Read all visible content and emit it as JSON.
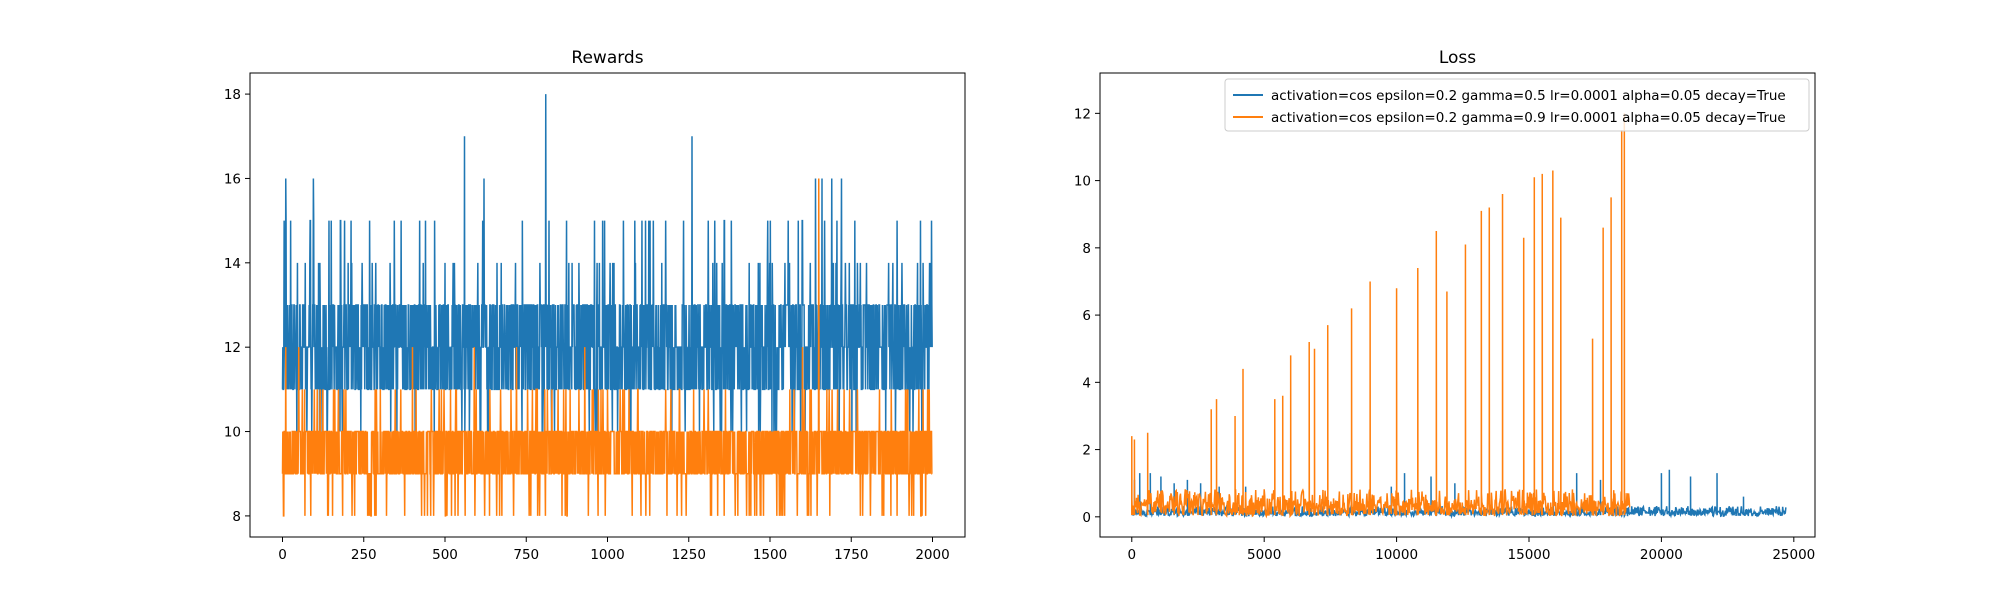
{
  "figure": {
    "background": "#ffffff"
  },
  "chart_data": [
    {
      "type": "line",
      "title": "Rewards",
      "xlabel": "",
      "ylabel": "",
      "xlim": [
        -100,
        2100
      ],
      "ylim": [
        7.5,
        18.5
      ],
      "xticks": [
        0,
        250,
        500,
        750,
        1000,
        1250,
        1500,
        1750,
        2000
      ],
      "xtick_labels": [
        "0",
        "250",
        "500",
        "750",
        "1000",
        "1250",
        "1500",
        "1750",
        "2000"
      ],
      "yticks": [
        8,
        10,
        12,
        14,
        16,
        18
      ],
      "ytick_labels": [
        "8",
        "10",
        "12",
        "14",
        "16",
        "18"
      ],
      "grid": false,
      "series": [
        {
          "color": "#1f77b4",
          "n_points": 2000,
          "typical_range": [
            11,
            13
          ],
          "occasional_range": [
            10,
            15
          ],
          "spikes": [
            {
              "x": 5,
              "y": 15
            },
            {
              "x": 10,
              "y": 16
            },
            {
              "x": 95,
              "y": 16
            },
            {
              "x": 560,
              "y": 17
            },
            {
              "x": 620,
              "y": 16
            },
            {
              "x": 810,
              "y": 18
            },
            {
              "x": 1260,
              "y": 17
            },
            {
              "x": 1640,
              "y": 16
            },
            {
              "x": 1660,
              "y": 16
            },
            {
              "x": 1690,
              "y": 16
            },
            {
              "x": 1720,
              "y": 16
            }
          ]
        },
        {
          "color": "#ff7f0e",
          "n_points": 2000,
          "typical_range": [
            9,
            10
          ],
          "occasional_range": [
            8,
            11
          ],
          "spikes": [
            {
              "x": 10,
              "y": 12
            },
            {
              "x": 50,
              "y": 12
            },
            {
              "x": 400,
              "y": 12
            },
            {
              "x": 590,
              "y": 12
            },
            {
              "x": 720,
              "y": 12
            },
            {
              "x": 930,
              "y": 12
            },
            {
              "x": 1600,
              "y": 12
            },
            {
              "x": 1650,
              "y": 16
            }
          ]
        }
      ]
    },
    {
      "type": "line",
      "title": "Loss",
      "xlabel": "",
      "ylabel": "",
      "xlim": [
        -1200,
        25800
      ],
      "ylim": [
        -0.6,
        13.2
      ],
      "xticks": [
        0,
        5000,
        10000,
        15000,
        20000,
        25000
      ],
      "xtick_labels": [
        "0",
        "5000",
        "10000",
        "15000",
        "20000",
        "25000"
      ],
      "yticks": [
        0,
        2,
        4,
        6,
        8,
        10,
        12
      ],
      "ytick_labels": [
        "0",
        "2",
        "4",
        "6",
        "8",
        "10",
        "12"
      ],
      "grid": false,
      "legend_position": "top-right",
      "series": [
        {
          "name": "activation=cos epsilon=0.2 gamma=0.5 lr=0.0001 alpha=0.05 decay=True",
          "color": "#1f77b4",
          "x_max": 24700,
          "baseline_max": 0.3,
          "spikes": [
            {
              "x": 100,
              "y": 1.1
            },
            {
              "x": 300,
              "y": 1.3
            },
            {
              "x": 700,
              "y": 1.3
            },
            {
              "x": 1100,
              "y": 1.2
            },
            {
              "x": 1600,
              "y": 1.0
            },
            {
              "x": 2100,
              "y": 1.1
            },
            {
              "x": 2600,
              "y": 1.0
            },
            {
              "x": 3300,
              "y": 0.9
            },
            {
              "x": 4300,
              "y": 0.9
            },
            {
              "x": 9800,
              "y": 0.9
            },
            {
              "x": 10300,
              "y": 1.3
            },
            {
              "x": 11300,
              "y": 1.2
            },
            {
              "x": 12200,
              "y": 1.0
            },
            {
              "x": 16800,
              "y": 1.3
            },
            {
              "x": 17700,
              "y": 1.1
            },
            {
              "x": 20000,
              "y": 1.3
            },
            {
              "x": 20300,
              "y": 1.4
            },
            {
              "x": 21100,
              "y": 1.2
            },
            {
              "x": 22100,
              "y": 1.3
            },
            {
              "x": 23100,
              "y": 0.6
            }
          ]
        },
        {
          "name": "activation=cos epsilon=0.2 gamma=0.9 lr=0.0001 alpha=0.05 decay=True",
          "color": "#ff7f0e",
          "x_max": 18800,
          "baseline_max": 0.8,
          "spikes": [
            {
              "x": 0,
              "y": 2.4
            },
            {
              "x": 100,
              "y": 2.3
            },
            {
              "x": 600,
              "y": 2.5
            },
            {
              "x": 3000,
              "y": 3.2
            },
            {
              "x": 3200,
              "y": 3.5
            },
            {
              "x": 3900,
              "y": 3.0
            },
            {
              "x": 4200,
              "y": 4.4
            },
            {
              "x": 5400,
              "y": 3.5
            },
            {
              "x": 5700,
              "y": 3.6
            },
            {
              "x": 6000,
              "y": 4.8
            },
            {
              "x": 6700,
              "y": 5.2
            },
            {
              "x": 6900,
              "y": 5.0
            },
            {
              "x": 7400,
              "y": 5.7
            },
            {
              "x": 8300,
              "y": 6.2
            },
            {
              "x": 9000,
              "y": 7.0
            },
            {
              "x": 10000,
              "y": 6.8
            },
            {
              "x": 10800,
              "y": 7.4
            },
            {
              "x": 11500,
              "y": 8.5
            },
            {
              "x": 11900,
              "y": 6.7
            },
            {
              "x": 12600,
              "y": 8.1
            },
            {
              "x": 13200,
              "y": 9.1
            },
            {
              "x": 13500,
              "y": 9.2
            },
            {
              "x": 14000,
              "y": 9.6
            },
            {
              "x": 14800,
              "y": 8.3
            },
            {
              "x": 15200,
              "y": 10.1
            },
            {
              "x": 15500,
              "y": 10.2
            },
            {
              "x": 15900,
              "y": 10.3
            },
            {
              "x": 16200,
              "y": 8.9
            },
            {
              "x": 17400,
              "y": 5.3
            },
            {
              "x": 17800,
              "y": 8.6
            },
            {
              "x": 18100,
              "y": 9.5
            },
            {
              "x": 18500,
              "y": 11.5
            },
            {
              "x": 18600,
              "y": 12.0
            }
          ]
        }
      ]
    }
  ]
}
